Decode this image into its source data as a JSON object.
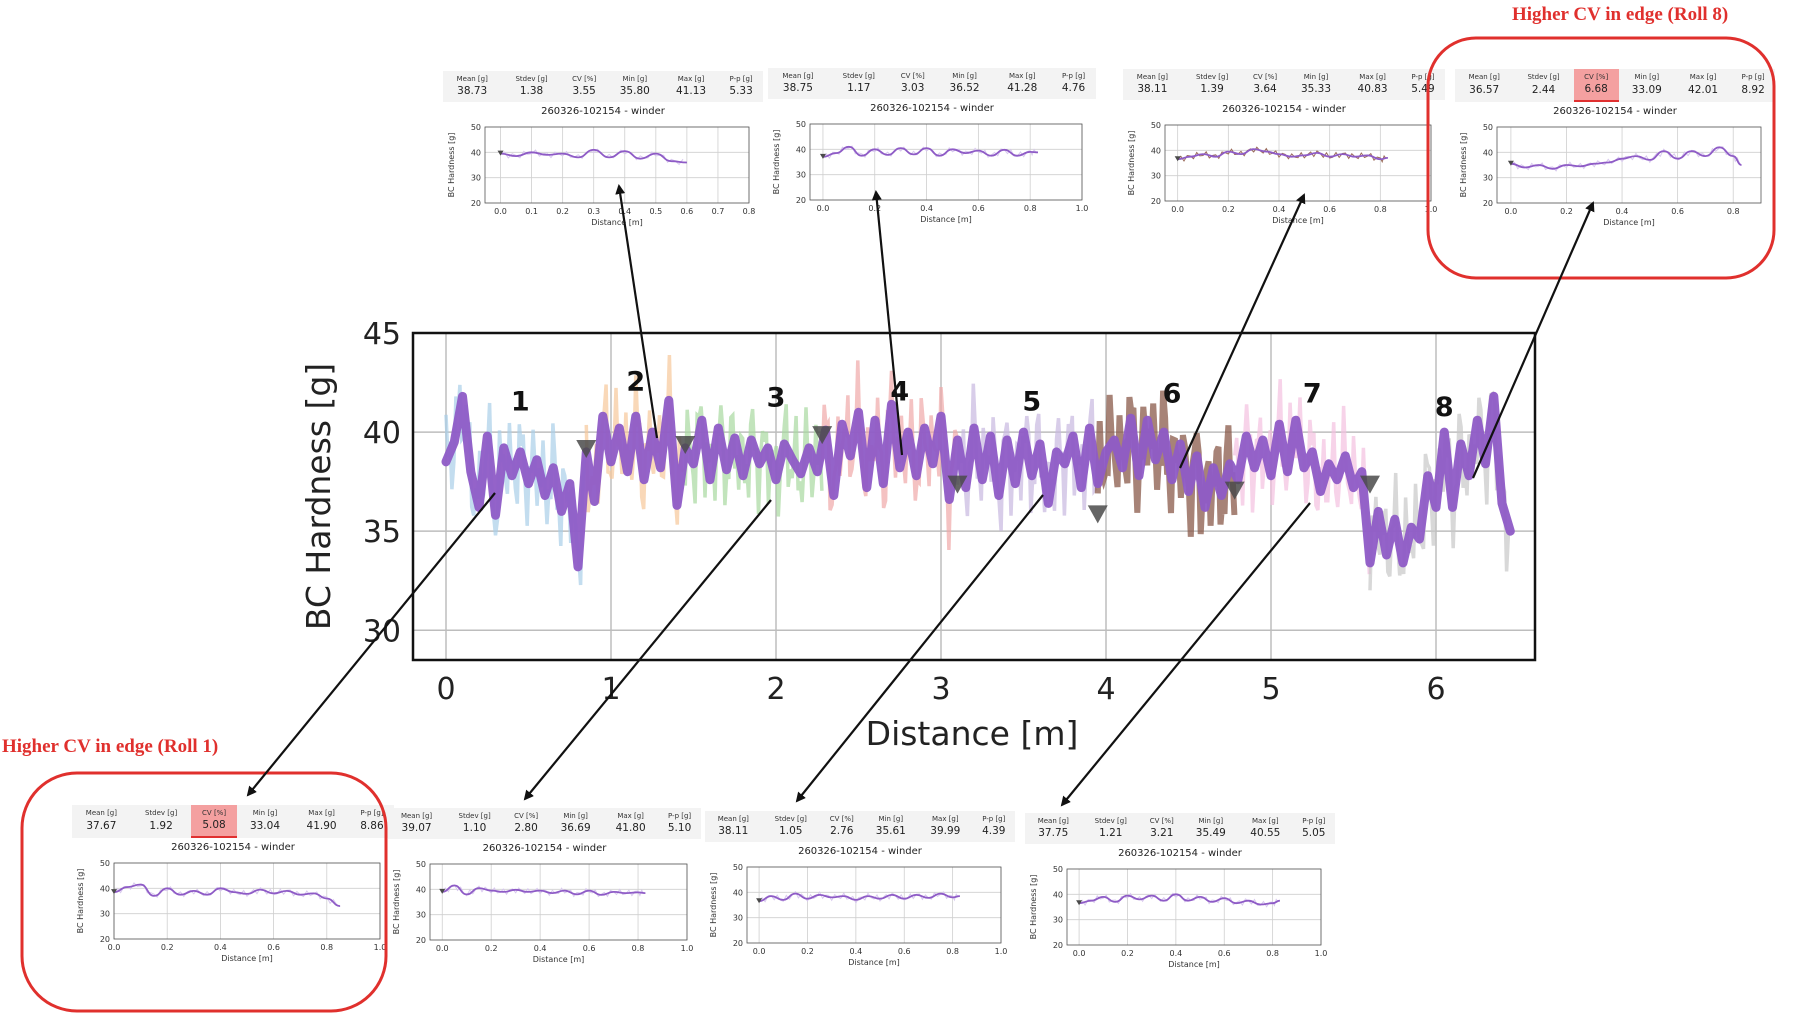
{
  "colors": {
    "main_line": "#8e5bc6",
    "callout_red": "#e0302d",
    "highlight_cell": "#f4a0a0",
    "marker": "#4a4a4a",
    "grid": "#bdbdbd"
  },
  "callouts": {
    "roll8": "Higher CV in edge (Roll 8)",
    "roll1": "Higher CV in edge (Roll 1)"
  },
  "stats_headers": [
    "Mean [g]",
    "Stdev [g]",
    "CV [%]",
    "Min [g]",
    "Max [g]",
    "P-p [g]"
  ],
  "chart_data": [
    {
      "type": "line",
      "ylabel": "BC Hardness [g]",
      "xlabel": "Distance [m]",
      "xlim": [
        -0.2,
        6.6
      ],
      "ylim": [
        28.5,
        45
      ],
      "xticks": [
        0,
        1,
        2,
        3,
        4,
        5,
        6
      ],
      "yticks": [
        30,
        35,
        40,
        45
      ],
      "grid": true,
      "roll_labels": [
        {
          "label": "1",
          "x": 0.45,
          "y": 41.1
        },
        {
          "label": "2",
          "x": 1.15,
          "y": 42.1
        },
        {
          "label": "3",
          "x": 2.0,
          "y": 41.3
        },
        {
          "label": "4",
          "x": 2.75,
          "y": 41.6
        },
        {
          "label": "5",
          "x": 3.55,
          "y": 41.1
        },
        {
          "label": "6",
          "x": 4.4,
          "y": 41.5
        },
        {
          "label": "7",
          "x": 5.25,
          "y": 41.5
        },
        {
          "label": "8",
          "x": 6.05,
          "y": 40.8
        }
      ],
      "roll_boundaries": [
        {
          "x": 0.85,
          "y": 39.2
        },
        {
          "x": 1.45,
          "y": 39.4
        },
        {
          "x": 2.28,
          "y": 39.9
        },
        {
          "x": 3.1,
          "y": 37.4
        },
        {
          "x": 3.95,
          "y": 35.9
        },
        {
          "x": 4.78,
          "y": 37.1
        },
        {
          "x": 5.6,
          "y": 37.4
        }
      ],
      "series": [
        {
          "x": [
            0,
            0.05,
            0.1,
            0.15,
            0.2,
            0.25,
            0.3,
            0.35,
            0.4,
            0.45,
            0.5,
            0.55,
            0.6,
            0.65,
            0.7,
            0.75,
            0.8,
            0.85,
            0.9,
            0.95,
            1.0,
            1.05,
            1.1,
            1.15,
            1.2,
            1.25,
            1.3,
            1.35,
            1.4,
            1.45,
            1.5,
            1.55,
            1.6,
            1.65,
            1.7,
            1.75,
            1.8,
            1.85,
            1.9,
            1.95,
            2.0,
            2.05,
            2.1,
            2.15,
            2.2,
            2.25,
            2.3,
            2.35,
            2.4,
            2.45,
            2.5,
            2.55,
            2.6,
            2.65,
            2.7,
            2.75,
            2.8,
            2.85,
            2.9,
            2.95,
            3.0,
            3.05,
            3.1,
            3.15,
            3.2,
            3.25,
            3.3,
            3.35,
            3.4,
            3.45,
            3.5,
            3.55,
            3.6,
            3.65,
            3.7,
            3.75,
            3.8,
            3.85,
            3.9,
            3.95,
            4.0,
            4.05,
            4.1,
            4.15,
            4.2,
            4.25,
            4.3,
            4.35,
            4.4,
            4.45,
            4.5,
            4.55,
            4.6,
            4.65,
            4.7,
            4.75,
            4.8,
            4.85,
            4.9,
            4.95,
            5.0,
            5.05,
            5.1,
            5.15,
            5.2,
            5.25,
            5.3,
            5.35,
            5.4,
            5.45,
            5.5,
            5.55,
            5.6,
            5.65,
            5.7,
            5.75,
            5.8,
            5.85,
            5.9,
            5.95,
            6.0,
            6.05,
            6.1,
            6.15,
            6.2,
            6.25,
            6.3,
            6.35,
            6.4,
            6.45
          ],
          "y": [
            38.5,
            39.5,
            41.8,
            38.0,
            36.2,
            39.8,
            35.8,
            39.2,
            37.8,
            39.0,
            37.4,
            38.6,
            36.8,
            38.2,
            36.0,
            37.4,
            33.2,
            39.0,
            36.5,
            40.8,
            38.5,
            40.2,
            38.0,
            40.8,
            37.6,
            40.0,
            38.2,
            41.6,
            36.3,
            39.2,
            38.4,
            40.6,
            37.6,
            40.2,
            38.1,
            39.7,
            37.8,
            39.6,
            38.4,
            39.2,
            37.6,
            39.4,
            38.6,
            37.9,
            39.2,
            38.0,
            40.1,
            36.8,
            40.4,
            38.8,
            41.0,
            37.2,
            40.6,
            37.4,
            41.4,
            38.2,
            40.0,
            37.8,
            40.2,
            38.4,
            40.8,
            36.6,
            39.6,
            37.2,
            40.2,
            37.6,
            39.8,
            36.8,
            39.6,
            37.4,
            40.0,
            37.8,
            39.4,
            36.4,
            39.0,
            38.4,
            39.8,
            37.2,
            40.2,
            37.4,
            39.0,
            39.6,
            38.2,
            40.7,
            37.8,
            40.6,
            38.6,
            40.0,
            37.6,
            39.4,
            37.0,
            38.8,
            36.2,
            38.2,
            36.8,
            38.4,
            37.6,
            39.8,
            38.2,
            39.6,
            37.8,
            40.4,
            38.0,
            40.6,
            38.2,
            39.0,
            37.0,
            38.4,
            37.6,
            38.8,
            37.2,
            38.0,
            33.4,
            36.0,
            33.8,
            35.6,
            33.4,
            35.2,
            34.6,
            37.8,
            36.2,
            40.0,
            36.2,
            39.4,
            37.8,
            40.6,
            38.4,
            41.8,
            36.4,
            35.0
          ]
        }
      ]
    },
    {
      "type": "line",
      "name": "Roll 1",
      "stats": {
        "mean": "37.67",
        "stdev": "1.92",
        "cv": "5.08",
        "min": "33.04",
        "max": "41.90",
        "pp": "8.86"
      },
      "cv_highlight": true,
      "title": "260326-102154 - winder",
      "ylabel": "BC Hardness [g]",
      "xlabel": "Distance [m]",
      "xlim": [
        0,
        1.0
      ],
      "ylim": [
        20,
        50
      ],
      "xticks": [
        "0.0",
        "0.2",
        "0.4",
        "0.6",
        "0.8",
        "1.0"
      ],
      "yticks": [
        20,
        30,
        40,
        50
      ],
      "x": [
        0,
        0.05,
        0.1,
        0.15,
        0.2,
        0.25,
        0.3,
        0.35,
        0.4,
        0.45,
        0.5,
        0.55,
        0.6,
        0.65,
        0.7,
        0.75,
        0.8,
        0.85
      ],
      "y": [
        38.5,
        40.5,
        41.5,
        37.0,
        40.0,
        37.5,
        39.0,
        37.5,
        40.0,
        38.5,
        37.8,
        39.5,
        38.0,
        39.0,
        37.5,
        38.0,
        36.0,
        33.0
      ]
    },
    {
      "type": "line",
      "name": "Roll 2",
      "stats": {
        "mean": "38.73",
        "stdev": "1.38",
        "cv": "3.55",
        "min": "35.80",
        "max": "41.13",
        "pp": "5.33"
      },
      "cv_highlight": false,
      "title": "260326-102154 - winder",
      "ylabel": "BC Hardness [g]",
      "xlabel": "Distance [m]",
      "xlim": [
        -0.05,
        0.8
      ],
      "ylim": [
        20,
        50
      ],
      "xticks": [
        "0.0",
        "0.1",
        "0.2",
        "0.3",
        "0.4",
        "0.5",
        "0.6",
        "0.7",
        "0.8"
      ],
      "yticks": [
        20,
        30,
        40,
        50
      ],
      "x": [
        0,
        0.05,
        0.1,
        0.15,
        0.2,
        0.25,
        0.3,
        0.35,
        0.4,
        0.45,
        0.5,
        0.55,
        0.6
      ],
      "y": [
        39.5,
        38.5,
        40.0,
        39.0,
        39.5,
        38.0,
        41.0,
        38.0,
        40.5,
        37.5,
        39.5,
        36.5,
        36.0
      ]
    },
    {
      "type": "line",
      "name": "Roll 3",
      "stats": {
        "mean": "39.07",
        "stdev": "1.10",
        "cv": "2.80",
        "min": "36.69",
        "max": "41.80",
        "pp": "5.10"
      },
      "cv_highlight": false,
      "title": "260326-102154 - winder",
      "ylabel": "BC Hardness [g]",
      "xlabel": "Distance [m]",
      "xlim": [
        -0.05,
        1.0
      ],
      "ylim": [
        20,
        50
      ],
      "xticks": [
        "0.0",
        "0.2",
        "0.4",
        "0.6",
        "0.8",
        "1.0"
      ],
      "yticks": [
        20,
        30,
        40,
        50
      ],
      "x": [
        0,
        0.05,
        0.1,
        0.15,
        0.2,
        0.25,
        0.3,
        0.35,
        0.4,
        0.45,
        0.5,
        0.55,
        0.6,
        0.65,
        0.7,
        0.75,
        0.8,
        0.83
      ],
      "y": [
        39.0,
        41.5,
        38.0,
        40.5,
        39.5,
        39.0,
        39.8,
        39.0,
        39.5,
        38.5,
        39.5,
        38.0,
        39.5,
        37.8,
        39.0,
        38.5,
        38.8,
        38.5
      ]
    },
    {
      "type": "line",
      "name": "Roll 4",
      "stats": {
        "mean": "38.75",
        "stdev": "1.17",
        "cv": "3.03",
        "min": "36.52",
        "max": "41.28",
        "pp": "4.76"
      },
      "cv_highlight": false,
      "title": "260326-102154 - winder",
      "ylabel": "BC Hardness [g]",
      "xlabel": "Distance [m]",
      "xlim": [
        -0.05,
        1.0
      ],
      "ylim": [
        20,
        50
      ],
      "xticks": [
        "0.0",
        "0.2",
        "0.4",
        "0.6",
        "0.8",
        "1.0"
      ],
      "yticks": [
        20,
        30,
        40,
        50
      ],
      "x": [
        0,
        0.05,
        0.1,
        0.15,
        0.2,
        0.25,
        0.3,
        0.35,
        0.4,
        0.45,
        0.5,
        0.55,
        0.6,
        0.65,
        0.7,
        0.75,
        0.8,
        0.83
      ],
      "y": [
        37.0,
        38.5,
        41.0,
        37.5,
        40.0,
        37.8,
        40.5,
        38.0,
        40.5,
        37.5,
        40.0,
        38.5,
        39.5,
        37.5,
        39.8,
        37.5,
        39.0,
        38.8
      ]
    },
    {
      "type": "line",
      "name": "Roll 5",
      "stats": {
        "mean": "38.11",
        "stdev": "1.05",
        "cv": "2.76",
        "min": "35.61",
        "max": "39.99",
        "pp": "4.39"
      },
      "cv_highlight": false,
      "title": "260326-102154 - winder",
      "ylabel": "BC Hardness [g]",
      "xlabel": "Distance [m]",
      "xlim": [
        -0.05,
        1.0
      ],
      "ylim": [
        20,
        50
      ],
      "xticks": [
        "0.0",
        "0.2",
        "0.4",
        "0.6",
        "0.8",
        "1.0"
      ],
      "yticks": [
        20,
        30,
        40,
        50
      ],
      "x": [
        0,
        0.05,
        0.1,
        0.15,
        0.2,
        0.25,
        0.3,
        0.35,
        0.4,
        0.45,
        0.5,
        0.55,
        0.6,
        0.65,
        0.7,
        0.75,
        0.8,
        0.83
      ],
      "y": [
        36.5,
        38.5,
        37.0,
        39.5,
        37.5,
        39.0,
        38.0,
        38.5,
        37.0,
        38.5,
        37.5,
        39.0,
        37.5,
        39.0,
        37.8,
        39.5,
        38.0,
        38.5
      ]
    },
    {
      "type": "line",
      "name": "Roll 6",
      "stats": {
        "mean": "38.11",
        "stdev": "1.39",
        "cv": "3.64",
        "min": "35.33",
        "max": "40.83",
        "pp": "5.49"
      },
      "cv_highlight": false,
      "title": "260326-102154 - winder",
      "ylabel": "BC Hardness [g]",
      "xlabel": "Distance [m]",
      "xlim": [
        -0.05,
        1.0
      ],
      "ylim": [
        20,
        50
      ],
      "xticks": [
        "0.0",
        "0.2",
        "0.4",
        "0.6",
        "0.8",
        "1.0"
      ],
      "yticks": [
        20,
        30,
        40,
        50
      ],
      "x": [
        0,
        0.05,
        0.1,
        0.15,
        0.2,
        0.25,
        0.3,
        0.35,
        0.4,
        0.45,
        0.5,
        0.55,
        0.6,
        0.65,
        0.7,
        0.75,
        0.8,
        0.83
      ],
      "y": [
        36.5,
        37.5,
        38.5,
        37.5,
        39.5,
        38.5,
        40.5,
        39.5,
        38.5,
        37.5,
        38.0,
        39.0,
        37.5,
        38.5,
        37.5,
        38.0,
        36.5,
        37.0
      ]
    },
    {
      "type": "line",
      "name": "Roll 7",
      "stats": {
        "mean": "37.75",
        "stdev": "1.21",
        "cv": "3.21",
        "min": "35.49",
        "max": "40.55",
        "pp": "5.05"
      },
      "cv_highlight": false,
      "title": "260326-102154 - winder",
      "ylabel": "BC Hardness [g]",
      "xlabel": "Distance [m]",
      "xlim": [
        -0.05,
        1.0
      ],
      "ylim": [
        20,
        50
      ],
      "xticks": [
        "0.0",
        "0.2",
        "0.4",
        "0.6",
        "0.8",
        "1.0"
      ],
      "yticks": [
        20,
        30,
        40,
        50
      ],
      "x": [
        0,
        0.05,
        0.1,
        0.15,
        0.2,
        0.25,
        0.3,
        0.35,
        0.4,
        0.45,
        0.5,
        0.55,
        0.6,
        0.65,
        0.7,
        0.75,
        0.8,
        0.83
      ],
      "y": [
        36.5,
        37.5,
        39.0,
        37.0,
        39.5,
        38.0,
        39.5,
        37.5,
        40.0,
        37.5,
        39.0,
        37.0,
        38.5,
        36.5,
        37.5,
        36.0,
        36.5,
        37.5
      ]
    },
    {
      "type": "line",
      "name": "Roll 8",
      "stats": {
        "mean": "36.57",
        "stdev": "2.44",
        "cv": "6.68",
        "min": "33.09",
        "max": "42.01",
        "pp": "8.92"
      },
      "cv_highlight": true,
      "title": "260326-102154 - winder",
      "ylabel": "BC Hardness [g]",
      "xlabel": "Distance [m]",
      "xlim": [
        -0.05,
        0.9
      ],
      "ylim": [
        20,
        50
      ],
      "xticks": [
        "0.0",
        "0.2",
        "0.4",
        "0.6",
        "0.8"
      ],
      "yticks": [
        20,
        30,
        40,
        50
      ],
      "x": [
        0,
        0.05,
        0.1,
        0.15,
        0.2,
        0.25,
        0.3,
        0.35,
        0.4,
        0.45,
        0.5,
        0.55,
        0.6,
        0.65,
        0.7,
        0.75,
        0.8,
        0.83
      ],
      "y": [
        35.5,
        34.0,
        35.0,
        33.5,
        35.0,
        34.5,
        35.5,
        36.0,
        37.5,
        38.5,
        37.0,
        40.5,
        37.5,
        40.5,
        38.5,
        42.0,
        38.5,
        35.0
      ]
    }
  ]
}
